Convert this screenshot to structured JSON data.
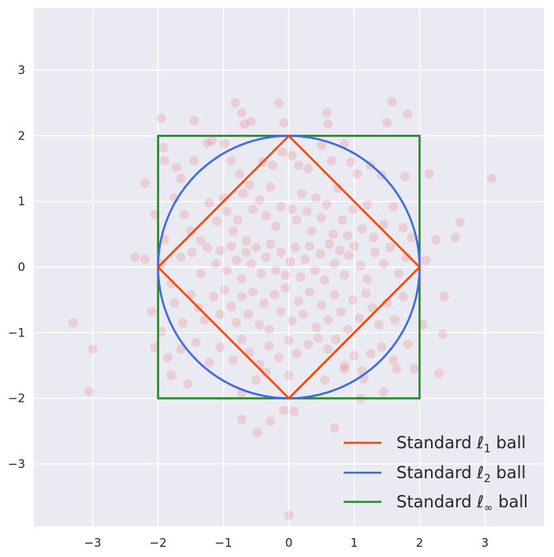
{
  "chart_data": {
    "type": "scatter",
    "title": "",
    "xlabel": "",
    "ylabel": "",
    "xlim": [
      -3.9,
      3.9
    ],
    "ylim": [
      -3.95,
      3.95
    ],
    "xticks": [
      -3,
      -2,
      -1,
      0,
      1,
      2,
      3
    ],
    "yticks": [
      -3,
      -2,
      -1,
      0,
      1,
      2,
      3
    ],
    "xtick_labels": [
      "−3",
      "−2",
      "−1",
      "0",
      "1",
      "2",
      "3"
    ],
    "ytick_labels": [
      "−3",
      "−2",
      "−1",
      "0",
      "1",
      "2",
      "3"
    ],
    "grid": true,
    "legend_position": "bottom-right",
    "colors": {
      "background": "#eaeaf2",
      "grid": "#ffffff",
      "points": "#e8474f",
      "l1": "#ff4500",
      "l2": "#4169e1",
      "linf": "#228b22"
    },
    "shapes": [
      {
        "id": "l1",
        "label_prefix": "Standard ",
        "label_sym": "ℓ",
        "label_sub": "1",
        "label_suffix": " ball",
        "kind": "diamond",
        "radius": 2
      },
      {
        "id": "l2",
        "label_prefix": "Standard ",
        "label_sym": "ℓ",
        "label_sub": "2",
        "label_suffix": " ball",
        "kind": "circle",
        "radius": 2
      },
      {
        "id": "linf",
        "label_prefix": "Standard ",
        "label_sym": "ℓ",
        "label_sub": "∞",
        "label_suffix": " ball",
        "kind": "square",
        "radius": 2
      }
    ],
    "points": [
      [
        -1.95,
        2.27
      ],
      [
        -1.45,
        2.23
      ],
      [
        -0.82,
        2.5
      ],
      [
        -0.72,
        2.35
      ],
      [
        -0.68,
        2.18
      ],
      [
        -0.58,
        2.22
      ],
      [
        -0.15,
        2.5
      ],
      [
        -0.08,
        2.2
      ],
      [
        0.58,
        2.35
      ],
      [
        0.6,
        2.18
      ],
      [
        1.58,
        2.52
      ],
      [
        1.5,
        2.2
      ],
      [
        1.82,
        2.33
      ],
      [
        -1.92,
        1.82
      ],
      [
        -1.9,
        1.62
      ],
      [
        -1.72,
        1.52
      ],
      [
        -1.65,
        1.35
      ],
      [
        -1.45,
        1.62
      ],
      [
        -1.25,
        1.88
      ],
      [
        -1.18,
        1.92
      ],
      [
        -0.98,
        1.88
      ],
      [
        -0.88,
        1.62
      ],
      [
        -0.75,
        1.42
      ],
      [
        -0.6,
        1.25
      ],
      [
        -0.4,
        1.6
      ],
      [
        -0.25,
        1.55
      ],
      [
        -0.1,
        1.75
      ],
      [
        0.05,
        1.7
      ],
      [
        0.15,
        1.55
      ],
      [
        0.3,
        1.5
      ],
      [
        0.5,
        1.85
      ],
      [
        0.65,
        1.62
      ],
      [
        0.85,
        1.88
      ],
      [
        0.95,
        1.6
      ],
      [
        1.05,
        1.42
      ],
      [
        1.25,
        1.55
      ],
      [
        1.42,
        1.4
      ],
      [
        1.78,
        1.38
      ],
      [
        2.15,
        1.42
      ],
      [
        3.1,
        1.35
      ],
      [
        -2.2,
        1.28
      ],
      [
        -2.05,
        0.8
      ],
      [
        -1.9,
        0.42
      ],
      [
        -1.75,
        1.05
      ],
      [
        -1.6,
        0.8
      ],
      [
        -1.5,
        0.55
      ],
      [
        -1.35,
        0.4
      ],
      [
        -1.22,
        0.98
      ],
      [
        -1.1,
        0.7
      ],
      [
        -1.0,
        1.05
      ],
      [
        -0.95,
        0.85
      ],
      [
        -0.85,
        0.55
      ],
      [
        -0.78,
        0.72
      ],
      [
        -0.7,
        1.12
      ],
      [
        -0.65,
        0.4
      ],
      [
        -0.55,
        0.88
      ],
      [
        -0.45,
        1.02
      ],
      [
        -0.35,
        0.78
      ],
      [
        -0.28,
        1.22
      ],
      [
        -0.2,
        0.62
      ],
      [
        -0.12,
        0.92
      ],
      [
        0.05,
        0.88
      ],
      [
        0.12,
        0.72
      ],
      [
        0.2,
        1.12
      ],
      [
        0.28,
        0.85
      ],
      [
        0.35,
        0.55
      ],
      [
        0.42,
        1.05
      ],
      [
        0.5,
        0.75
      ],
      [
        0.58,
        0.95
      ],
      [
        0.68,
        0.5
      ],
      [
        0.75,
        1.2
      ],
      [
        0.82,
        0.72
      ],
      [
        0.9,
        0.48
      ],
      [
        0.98,
        0.88
      ],
      [
        1.12,
        0.58
      ],
      [
        1.2,
        0.95
      ],
      [
        1.3,
        0.45
      ],
      [
        1.45,
        0.65
      ],
      [
        1.6,
        0.92
      ],
      [
        1.75,
        0.6
      ],
      [
        1.88,
        0.45
      ],
      [
        2.25,
        0.42
      ],
      [
        2.55,
        0.45
      ],
      [
        2.62,
        0.68
      ],
      [
        -2.35,
        0.15
      ],
      [
        -2.2,
        0.12
      ],
      [
        -1.95,
        0.05
      ],
      [
        -1.8,
        -0.25
      ],
      [
        -1.65,
        0.15
      ],
      [
        -1.48,
        0.22
      ],
      [
        -1.35,
        -0.1
      ],
      [
        -1.25,
        0.3
      ],
      [
        -1.12,
        0.05
      ],
      [
        -1.05,
        0.25
      ],
      [
        -0.95,
        -0.05
      ],
      [
        -0.88,
        0.32
      ],
      [
        -0.8,
        0.1
      ],
      [
        -0.72,
        -0.18
      ],
      [
        -0.65,
        0.22
      ],
      [
        -0.58,
        0.05
      ],
      [
        -0.5,
        0.3
      ],
      [
        -0.42,
        -0.1
      ],
      [
        -0.35,
        0.15
      ],
      [
        -0.28,
        0.35
      ],
      [
        -0.2,
        -0.05
      ],
      [
        -0.12,
        0.22
      ],
      [
        -0.05,
        -0.12
      ],
      [
        0.02,
        0.08
      ],
      [
        0.1,
        0.3
      ],
      [
        0.18,
        -0.15
      ],
      [
        0.25,
        0.12
      ],
      [
        0.32,
        0.32
      ],
      [
        0.4,
        -0.05
      ],
      [
        0.48,
        0.2
      ],
      [
        0.55,
        -0.2
      ],
      [
        0.62,
        0.35
      ],
      [
        0.7,
        0.05
      ],
      [
        0.78,
        0.25
      ],
      [
        0.85,
        -0.12
      ],
      [
        0.92,
        0.18
      ],
      [
        1.0,
        0.32
      ],
      [
        1.1,
        0.02
      ],
      [
        1.2,
        -0.18
      ],
      [
        1.32,
        0.22
      ],
      [
        1.45,
        0.05
      ],
      [
        1.55,
        0.3
      ],
      [
        1.68,
        -0.1
      ],
      [
        1.8,
        0.15
      ],
      [
        2.1,
        0.1
      ],
      [
        -2.1,
        -0.68
      ],
      [
        -1.95,
        -0.98
      ],
      [
        -1.75,
        -0.55
      ],
      [
        -1.62,
        -0.85
      ],
      [
        -1.5,
        -0.42
      ],
      [
        -1.38,
        -0.62
      ],
      [
        -1.28,
        -0.8
      ],
      [
        -1.15,
        -0.45
      ],
      [
        -1.05,
        -0.72
      ],
      [
        -0.98,
        -0.35
      ],
      [
        -0.88,
        -0.6
      ],
      [
        -0.8,
        -0.85
      ],
      [
        -0.72,
        -0.45
      ],
      [
        -0.62,
        -0.72
      ],
      [
        -0.55,
        -0.38
      ],
      [
        -0.45,
        -0.88
      ],
      [
        -0.38,
        -0.55
      ],
      [
        -0.3,
        -0.95
      ],
      [
        -0.22,
        -0.42
      ],
      [
        -0.12,
        -0.68
      ],
      [
        -0.05,
        -0.32
      ],
      [
        0.05,
        -0.82
      ],
      [
        0.15,
        -0.52
      ],
      [
        0.22,
        -0.72
      ],
      [
        0.32,
        -0.38
      ],
      [
        0.42,
        -0.92
      ],
      [
        0.5,
        -0.58
      ],
      [
        0.6,
        -0.8
      ],
      [
        0.7,
        -0.42
      ],
      [
        0.8,
        -0.68
      ],
      [
        0.9,
        -0.95
      ],
      [
        0.98,
        -0.5
      ],
      [
        1.08,
        -0.78
      ],
      [
        1.18,
        -0.4
      ],
      [
        1.28,
        -0.62
      ],
      [
        1.38,
        -0.88
      ],
      [
        1.5,
        -0.55
      ],
      [
        1.62,
        -0.8
      ],
      [
        1.75,
        -0.45
      ],
      [
        2.05,
        -0.88
      ],
      [
        2.38,
        -0.45
      ],
      [
        -3.3,
        -0.85
      ],
      [
        -3.0,
        -1.25
      ],
      [
        -2.05,
        -1.22
      ],
      [
        -1.85,
        -1.38
      ],
      [
        -1.65,
        -1.25
      ],
      [
        -1.42,
        -1.15
      ],
      [
        -1.22,
        -1.45
      ],
      [
        -1.05,
        -1.22
      ],
      [
        -0.85,
        -1.42
      ],
      [
        -0.72,
        -1.1
      ],
      [
        -0.6,
        -1.3
      ],
      [
        -0.45,
        -1.48
      ],
      [
        -0.3,
        -1.2
      ],
      [
        -0.15,
        -1.38
      ],
      [
        0.0,
        -1.12
      ],
      [
        0.12,
        -1.32
      ],
      [
        0.3,
        -1.18
      ],
      [
        0.45,
        -1.08
      ],
      [
        0.6,
        -1.25
      ],
      [
        0.72,
        -1.1
      ],
      [
        0.85,
        -1.5
      ],
      [
        1.0,
        -1.35
      ],
      [
        1.12,
        -1.58
      ],
      [
        1.25,
        -1.32
      ],
      [
        1.42,
        -1.22
      ],
      [
        1.6,
        -1.42
      ],
      [
        1.82,
        -1.18
      ],
      [
        2.35,
        -1.02
      ],
      [
        -3.05,
        -1.9
      ],
      [
        -1.8,
        -1.65
      ],
      [
        -1.55,
        -1.78
      ],
      [
        -0.72,
        -1.92
      ],
      [
        -0.5,
        -1.72
      ],
      [
        -0.35,
        -1.6
      ],
      [
        0.0,
        -1.65
      ],
      [
        0.55,
        -1.72
      ],
      [
        0.85,
        -1.55
      ],
      [
        1.1,
        -2.0
      ],
      [
        1.15,
        -1.7
      ],
      [
        1.45,
        -1.9
      ],
      [
        1.65,
        -1.55
      ],
      [
        1.92,
        -1.55
      ],
      [
        2.3,
        -1.62
      ],
      [
        -0.72,
        -2.32
      ],
      [
        -0.48,
        -2.52
      ],
      [
        -0.28,
        -2.35
      ],
      [
        -0.08,
        -2.18
      ],
      [
        0.08,
        -2.2
      ],
      [
        0.7,
        -2.45
      ],
      [
        0.0,
        -3.78
      ]
    ]
  }
}
